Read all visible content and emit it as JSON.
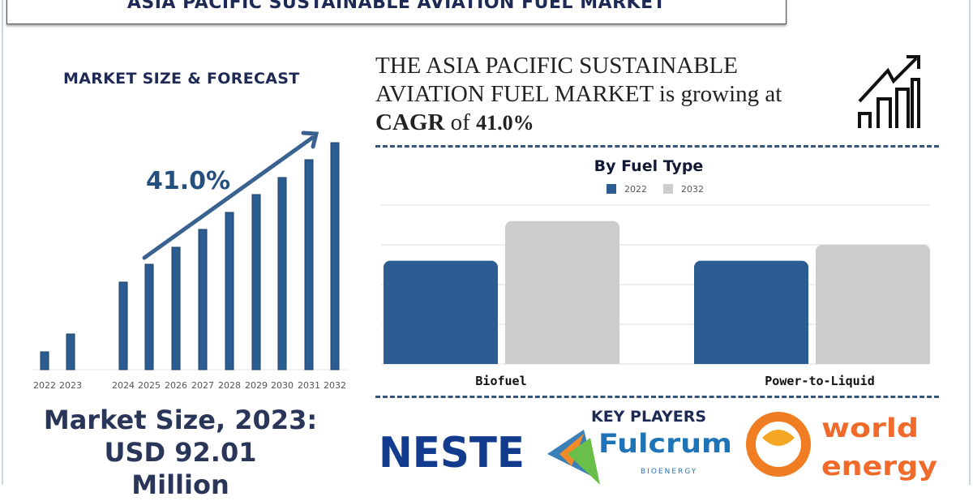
{
  "header": {
    "title": "ASIA PACIFIC SUSTAINABLE AVIATION FUEL MARKET"
  },
  "left": {
    "section_title": "MARKET SIZE & FORECAST",
    "cagr_label": "41.0%",
    "market_size_line1": "Market Size, 2023:",
    "market_size_line2": "USD 92.01",
    "market_size_line3": "Million"
  },
  "headline": {
    "line1": "THE ASIA PACIFIC SUSTAINABLE",
    "line2_a": "AVIATION FUEL MARKET",
    "line2_b": " is growing at",
    "cagr_word": "CAGR",
    "of_word": " of ",
    "cagr_value": "41.0%",
    "icon": "growth-chart-icon"
  },
  "key_players": {
    "title": "KEY PLAYERS",
    "logos": [
      "NESTE",
      "Fulcrum BIOENERGY",
      "world energy"
    ]
  },
  "colors": {
    "bar_blue": "#2b5d92",
    "bar_gray": "#cccccc",
    "navy": "#1d2a55"
  },
  "chart_data": [
    {
      "type": "bar",
      "title": "",
      "categories": [
        "2022",
        "2023",
        "2024",
        "2025",
        "2026",
        "2027",
        "2028",
        "2029",
        "2030",
        "2031",
        "2032"
      ],
      "values": [
        22,
        44,
        108,
        130,
        151,
        173,
        194,
        216,
        237,
        259,
        280
      ],
      "annotation": "41.0%",
      "grid": false,
      "note_units": "relative, no axis printed"
    },
    {
      "type": "bar",
      "title": "By Fuel Type",
      "categories": [
        "Biofuel",
        "Power-to-Liquid"
      ],
      "series": [
        {
          "name": "2022",
          "values": [
            2.6,
            2.6
          ]
        },
        {
          "name": "2032",
          "values": [
            3.6,
            3.0
          ]
        }
      ],
      "ylim": [
        0,
        4
      ],
      "grid": true,
      "legend": "top-center"
    }
  ]
}
